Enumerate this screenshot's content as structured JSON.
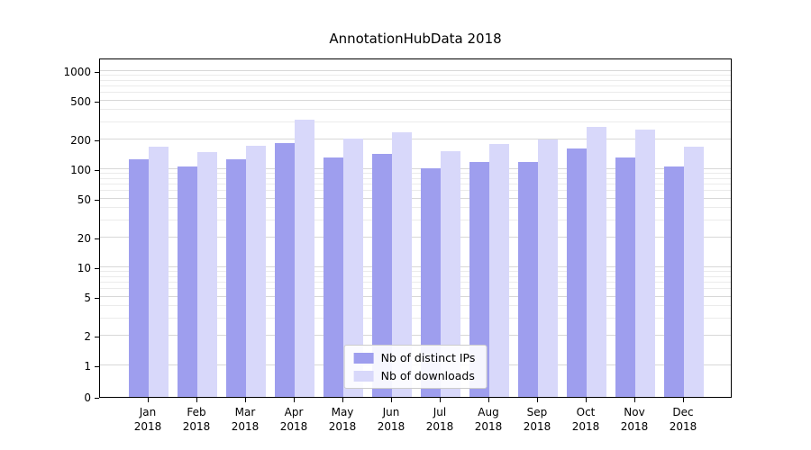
{
  "chart_data": {
    "type": "bar",
    "title": "AnnotationHubData 2018",
    "scale": "symlog",
    "grid": "horizontal",
    "legend_position": "lower center",
    "categories": [
      "Jan 2018",
      "Feb 2018",
      "Mar 2018",
      "Apr 2018",
      "May 2018",
      "Jun 2018",
      "Jul 2018",
      "Aug 2018",
      "Sep 2018",
      "Oct 2018",
      "Nov 2018",
      "Dec 2018"
    ],
    "series": [
      {
        "name": "Nb of distinct IPs",
        "color": "#9e9eee",
        "values": [
          125,
          106,
          125,
          185,
          133,
          142,
          102,
          118,
          118,
          162,
          133,
          106
        ]
      },
      {
        "name": "Nb of downloads",
        "color": "#d8d8fa",
        "values": [
          170,
          150,
          172,
          320,
          205,
          240,
          152,
          180,
          200,
          270,
          255,
          168
        ]
      }
    ],
    "y_ticks": [
      0,
      1,
      2,
      5,
      10,
      20,
      50,
      100,
      200,
      500,
      1000
    ],
    "ylim": [
      0,
      1290
    ]
  }
}
